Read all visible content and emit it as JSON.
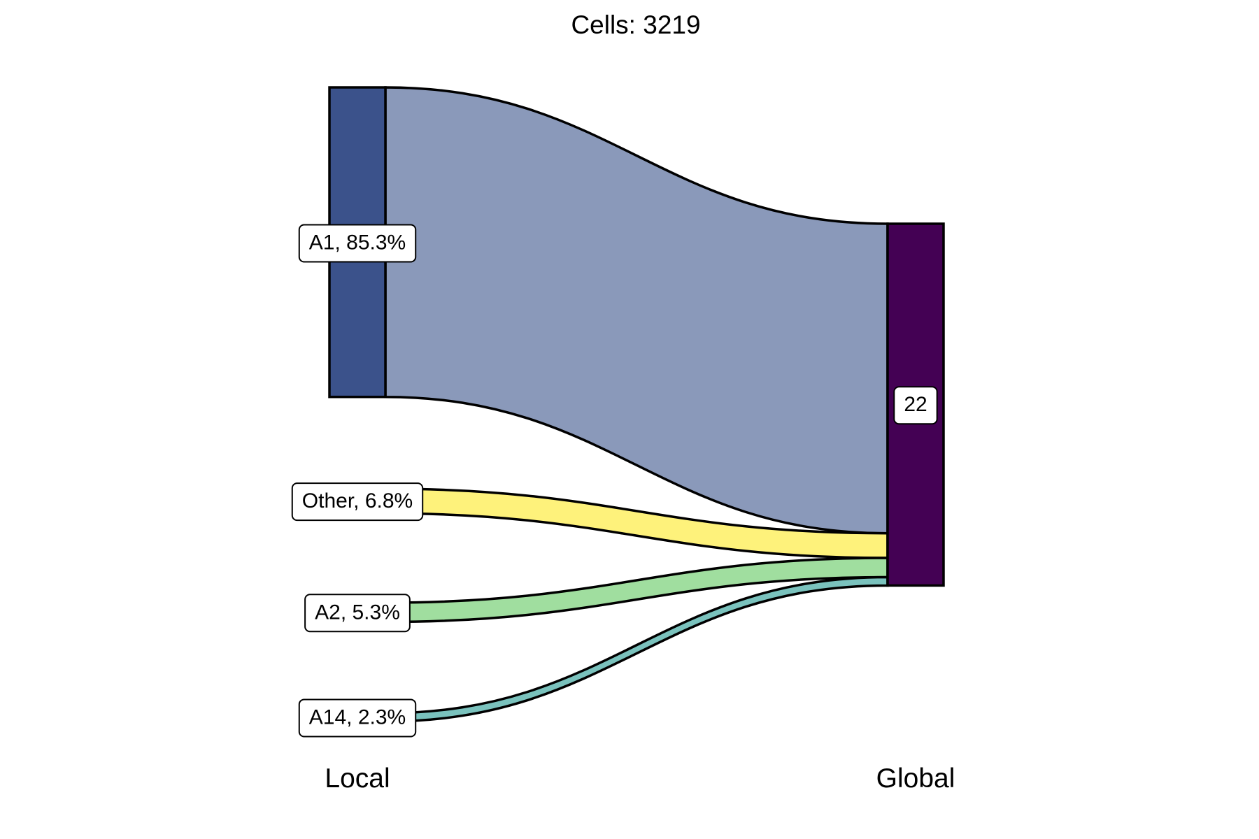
{
  "chart_data": {
    "type": "sankey",
    "title": "Cells:  3219",
    "columns": [
      "Local",
      "Global"
    ],
    "sources": [
      {
        "name": "A1",
        "percent": 85.3,
        "label": "A1, 85.3%",
        "color": "#3B528B",
        "flow_color": "#8A99BA"
      },
      {
        "name": "Other",
        "percent": 6.8,
        "label": "Other, 6.8%",
        "color": "#FDE725",
        "flow_color": "#FEF27B"
      },
      {
        "name": "A2",
        "percent": 5.3,
        "label": "A2, 5.3%",
        "color": "#5DC863",
        "flow_color": "#A0DE9F"
      },
      {
        "name": "A14",
        "percent": 2.3,
        "label": "A14, 2.3%",
        "color": "#21918C",
        "flow_color": "#7AC2BD"
      }
    ],
    "target": {
      "name": "22",
      "label": "22",
      "color": "#440154"
    },
    "flows": [
      {
        "from": "A1",
        "to": "22",
        "percent": 85.3
      },
      {
        "from": "Other",
        "to": "22",
        "percent": 6.8
      },
      {
        "from": "A2",
        "to": "22",
        "percent": 5.3
      },
      {
        "from": "A14",
        "to": "22",
        "percent": 2.3
      }
    ]
  }
}
